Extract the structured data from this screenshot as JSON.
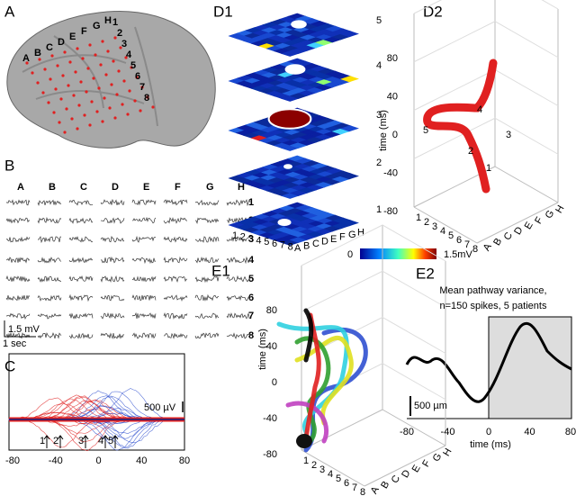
{
  "panels": {
    "A": {
      "label": "A",
      "grid_columns": [
        "A",
        "B",
        "C",
        "D",
        "E",
        "F",
        "G",
        "H"
      ],
      "grid_rows": [
        "1",
        "2",
        "3",
        "4",
        "5",
        "6",
        "7",
        "8"
      ]
    },
    "B": {
      "label": "B",
      "columns": [
        "A",
        "B",
        "C",
        "D",
        "E",
        "F",
        "G",
        "H"
      ],
      "rows": [
        "1",
        "2",
        "3",
        "4",
        "5",
        "6",
        "7",
        "8"
      ],
      "scale_voltage": "1.5 mV",
      "scale_time": "1 sec"
    },
    "C": {
      "label": "C",
      "xticks": [
        "-80",
        "-40",
        "0",
        "40",
        "80"
      ],
      "scale": "500  µV",
      "markers": [
        "1",
        "2",
        "3",
        "4",
        "5"
      ]
    },
    "D1": {
      "label": "D1",
      "layer_labels": [
        "5",
        "4",
        "3",
        "2",
        "1"
      ],
      "x_labels": [
        "1",
        "2",
        "3",
        "4",
        "5",
        "6",
        "7",
        "8"
      ],
      "y_labels": [
        "A",
        "B",
        "C",
        "D",
        "E",
        "F",
        "G",
        "H"
      ],
      "colorbar_min": "0",
      "colorbar_max": "1.5mV"
    },
    "D2": {
      "label": "D2",
      "axis_label": "time (ms)",
      "yticks": [
        "80",
        "40",
        "0",
        "-40",
        "-80"
      ],
      "x_labels": [
        "1",
        "2",
        "3",
        "4",
        "5",
        "6",
        "7",
        "8"
      ],
      "y_labels": [
        "A",
        "B",
        "C",
        "D",
        "E",
        "F",
        "G",
        "H"
      ],
      "path_labels": [
        "1",
        "2",
        "3",
        "4",
        "5"
      ]
    },
    "E1": {
      "label": "E1",
      "axis_label": "time (ms)",
      "yticks": [
        "80",
        "40",
        "0",
        "-40",
        "-80"
      ],
      "x_labels": [
        "1",
        "2",
        "3",
        "4",
        "5",
        "6",
        "7",
        "8"
      ],
      "y_labels": [
        "A",
        "B",
        "C",
        "D",
        "E",
        "F",
        "G",
        "H"
      ]
    },
    "E2": {
      "label": "E2",
      "title": "Mean pathway variance,",
      "subtitle": "n=150 spikes, 5 patients",
      "scale": "500 µm",
      "xticks": [
        "-80",
        "-40",
        "0",
        "40",
        "80"
      ],
      "axis_label": "time (ms)"
    }
  }
}
